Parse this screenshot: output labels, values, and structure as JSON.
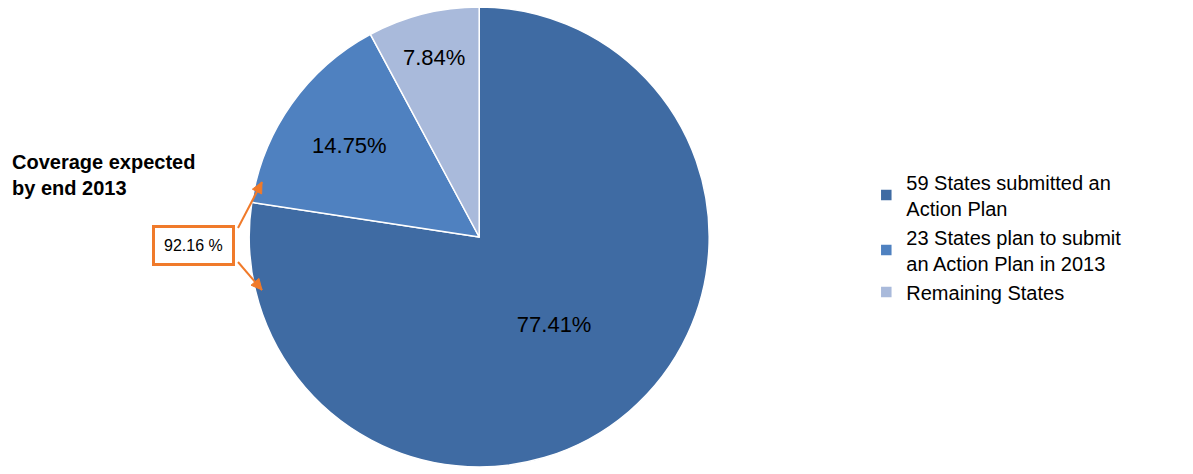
{
  "chart_data": {
    "type": "pie",
    "categories": [
      "59 States submitted an Action Plan",
      "23 States plan to submit an Action Plan in 2013",
      "Remaining States"
    ],
    "values": [
      77.41,
      14.75,
      7.84
    ],
    "value_labels": [
      "77.41%",
      "14.75%",
      "7.84%"
    ],
    "data_labels": true,
    "colors": [
      "#3f6ba3",
      "#4f81c0",
      "#a9badb"
    ],
    "legend": "right",
    "annotations": [
      "Coverage expected by end 2013",
      "92.16 %"
    ]
  }
}
